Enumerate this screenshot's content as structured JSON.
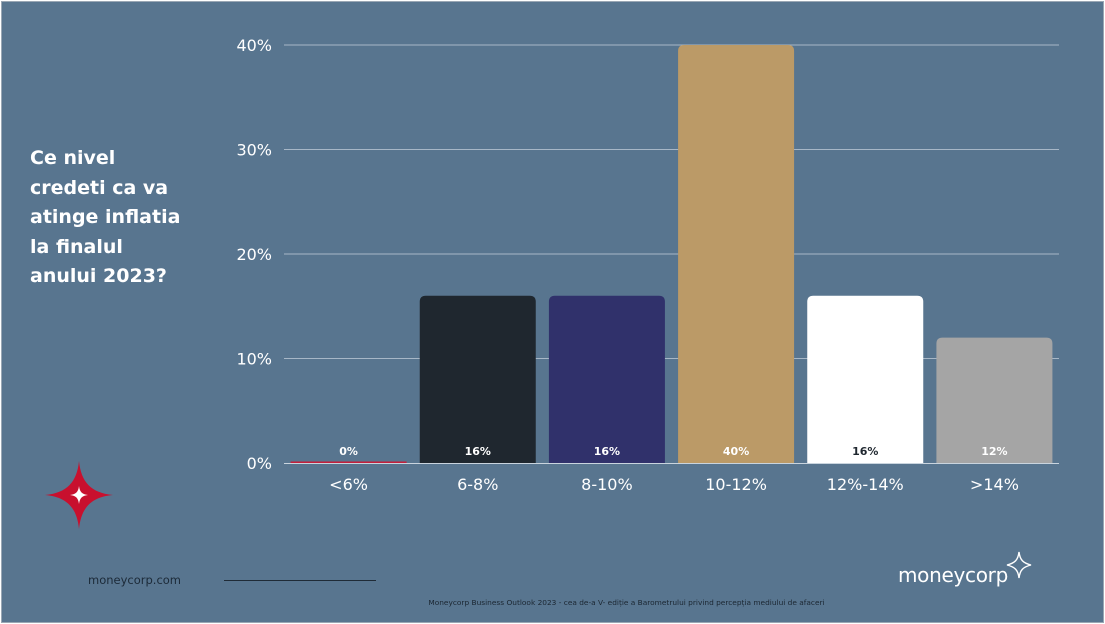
{
  "slide": {
    "question_lines": [
      "Ce nivel",
      "credeti ca va",
      "atinge inflatia",
      "la finalul",
      "anului 2023?"
    ],
    "website": "moneycorp.com",
    "brand": "moneycorp",
    "footer_text": "Moneycorp Business Outlook 2023 - cea de-a V- ediție a Barometrului privind percepția mediului de afaceri",
    "background_color": "#58758f",
    "star_icon": "moneycorp-star-logo",
    "brand_icon": "sparkle-icon"
  },
  "chart_data": {
    "type": "bar",
    "categories": [
      "<6%",
      "6-8%",
      "8-10%",
      "10-12%",
      "12%-14%",
      ">14%"
    ],
    "values": [
      0,
      16,
      16,
      40,
      16,
      12
    ],
    "data_labels": [
      "0%",
      "16%",
      "16%",
      "40%",
      "16%",
      "12%"
    ],
    "bar_colors": [
      "#c41e3a",
      "#1f272f",
      "#30316b",
      "#bb9a67",
      "#ffffff",
      "#a5a5a5"
    ],
    "label_colors": [
      "#ffffff",
      "#ffffff",
      "#ffffff",
      "#ffffff",
      "#1f272f",
      "#ffffff"
    ],
    "yticks": [
      0,
      10,
      20,
      30,
      40
    ],
    "ytick_labels": [
      "0%",
      "10%",
      "20%",
      "30%",
      "40%"
    ],
    "ylim": [
      0,
      40
    ],
    "grid": true
  }
}
